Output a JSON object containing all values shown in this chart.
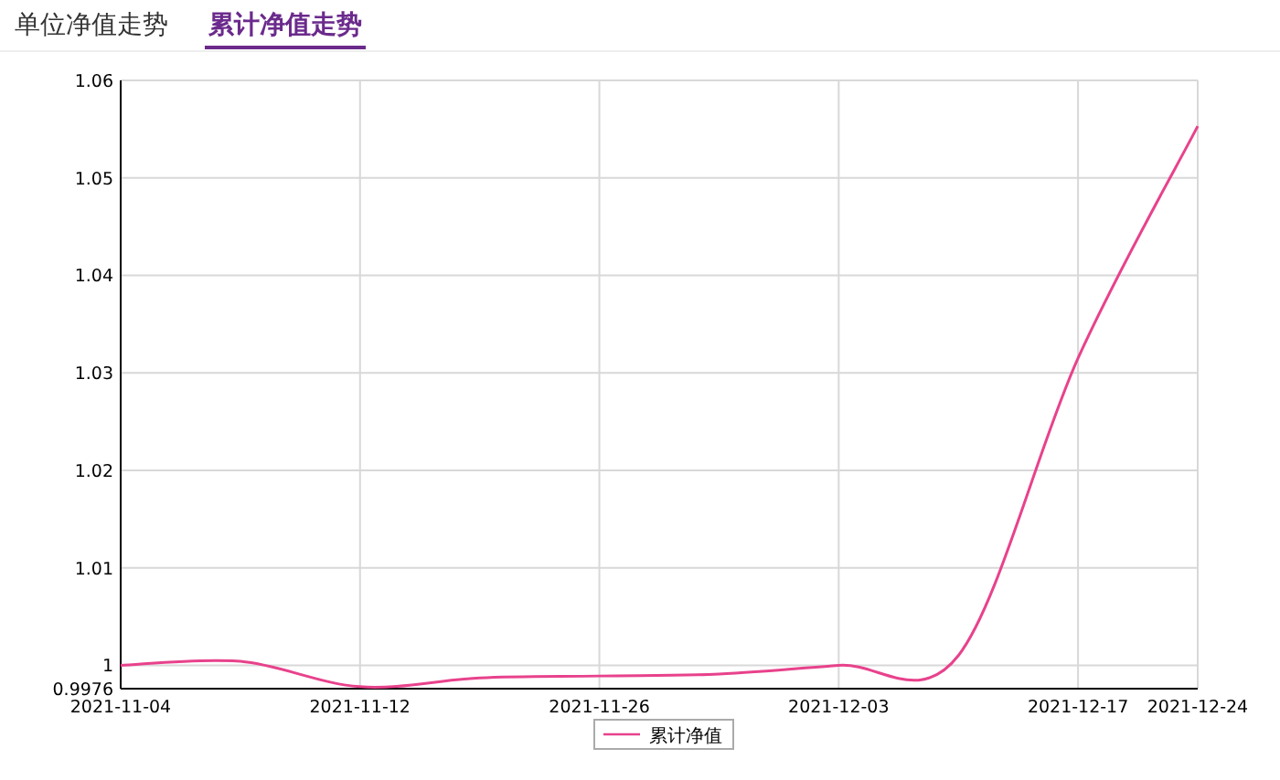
{
  "chart_data": {
    "type": "line",
    "annotations": [
      "单位净值走势",
      "累计净值走势"
    ],
    "categories": [
      "2021-11-04",
      null,
      "2021-11-12",
      null,
      "2021-11-26",
      null,
      "2021-12-03",
      null,
      "2021-12-17",
      "2021-12-24"
    ],
    "series": [
      {
        "name": "累计净值",
        "color": "#e8428c",
        "values": [
          1.0,
          1.0004,
          0.9978,
          0.9987,
          0.9989,
          0.9991,
          1.0,
          1.001,
          1.0315,
          1.0553
        ]
      }
    ],
    "ylim": [
      0.9976,
      1.06
    ],
    "yticks": [
      0.9976,
      1,
      1.01,
      1.02,
      1.03,
      1.04,
      1.05,
      1.06
    ],
    "grid": true,
    "legend": "bottom",
    "marker": "none",
    "line_style": "solid"
  }
}
